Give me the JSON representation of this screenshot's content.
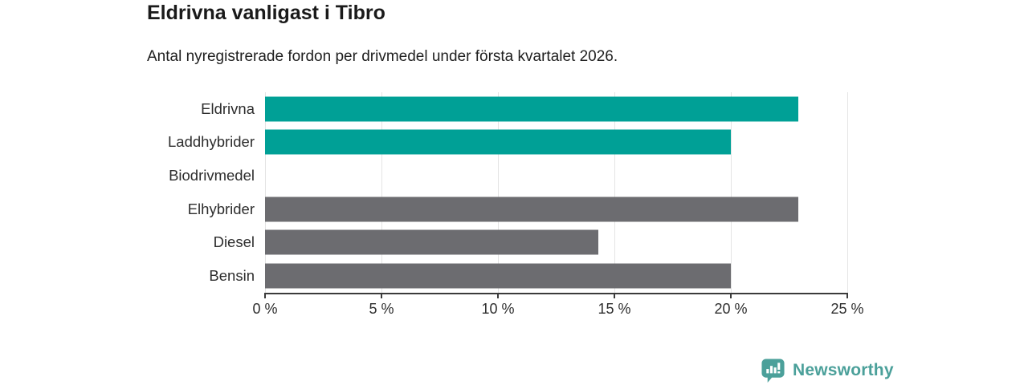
{
  "chart_data": {
    "type": "bar",
    "orientation": "horizontal",
    "title": "Eldrivna vanligast i Tibro",
    "subtitle": "Antal nyregistrerade fordon per drivmedel under första kvartalet 2026.",
    "categories": [
      "Eldrivna",
      "Laddhybrider",
      "Biodrivmedel",
      "Elhybrider",
      "Diesel",
      "Bensin"
    ],
    "values": [
      22.9,
      20,
      0,
      22.9,
      14.3,
      20
    ],
    "unit": "%",
    "bar_colors": [
      "#00A096",
      "#00A096",
      "#00A096",
      "#6C6C70",
      "#6C6C70",
      "#6C6C70"
    ],
    "xlim": [
      0,
      25
    ],
    "x_ticks": [
      "0 %",
      "5 %",
      "10 %",
      "15 %",
      "20 %",
      "25 %"
    ],
    "x_tick_values": [
      0,
      5,
      10,
      15,
      20,
      25
    ],
    "grid": true,
    "legend": false,
    "colors": {
      "accent_teal": "#00A096",
      "neutral_gray": "#6C6C70",
      "gridline": "#E4E4E4",
      "axis": "#3B3B3B",
      "text": "#2D2D2D"
    }
  },
  "branding": {
    "logo_text": "Newsworthy",
    "logo_icon": "newsworthy-chart-bubble-icon",
    "logo_color": "#4BA09A"
  }
}
